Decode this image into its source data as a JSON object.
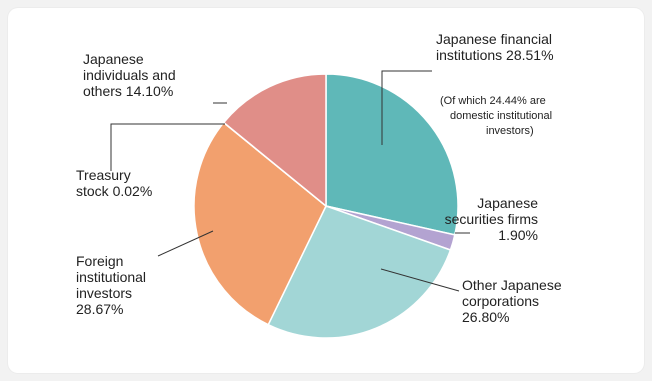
{
  "chart_data": {
    "type": "pie",
    "slices": [
      {
        "lines": [
          "Japanese financial",
          "institutions 28.51%"
        ],
        "note": [
          "(Of which 24.44% are",
          "domestic institutional",
          "investors)"
        ],
        "value": 28.51,
        "color": "#5fb8b8"
      },
      {
        "lines": [
          "Japanese",
          "securities firms",
          "1.90%"
        ],
        "value": 1.9,
        "color": "#b3a3d1"
      },
      {
        "lines": [
          "Other Japanese",
          "corporations",
          "26.80%"
        ],
        "value": 26.8,
        "color": "#a2d6d6"
      },
      {
        "lines": [
          "Foreign",
          "institutional",
          "investors",
          "28.67%"
        ],
        "value": 28.67,
        "color": "#f2a06e"
      },
      {
        "lines": [
          "Treasury",
          "stock 0.02%"
        ],
        "value": 0.02,
        "color": "#f0c0a0"
      },
      {
        "lines": [
          "Japanese",
          "individuals and",
          "others  14.10%"
        ],
        "value": 14.1,
        "color": "#e08e88"
      }
    ]
  }
}
